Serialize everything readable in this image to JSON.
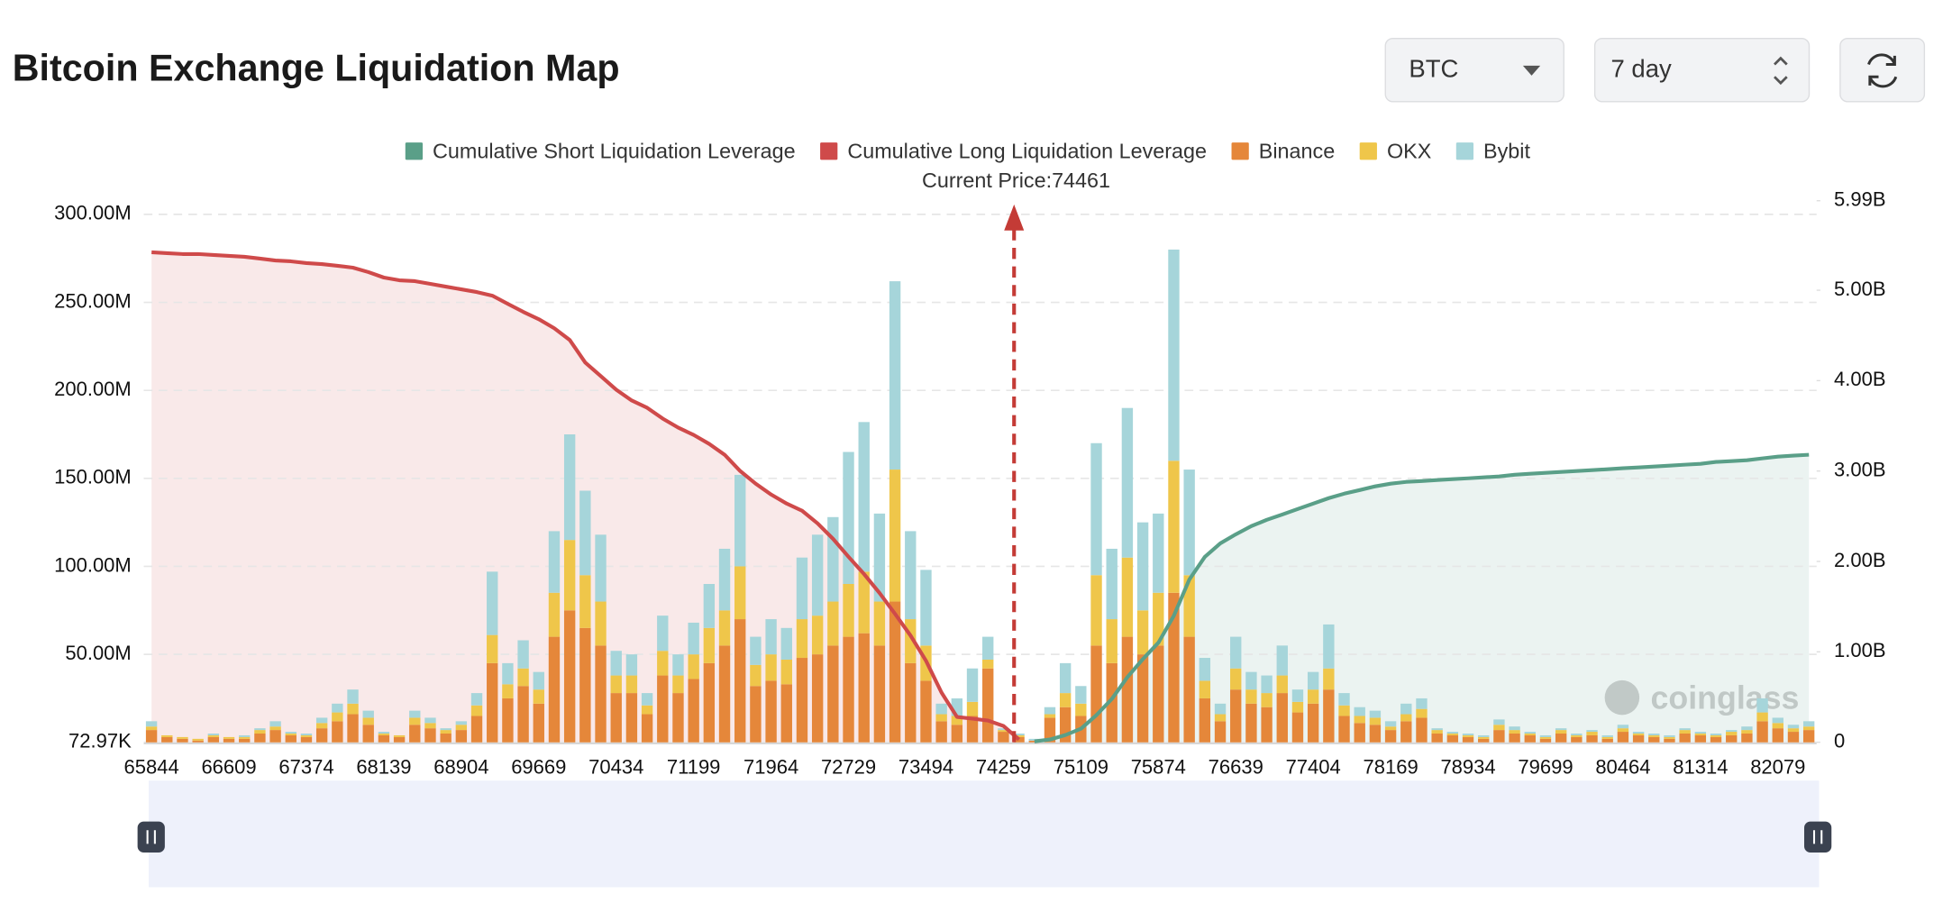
{
  "header": {
    "title": "Bitcoin Exchange Liquidation Map"
  },
  "controls": {
    "symbol": "BTC",
    "period": "7 day"
  },
  "chart_data": {
    "type": "bar",
    "watermark": "coinglass",
    "annotation": {
      "label": "Current Price:",
      "value": 74461
    },
    "categories": [
      65844,
      null,
      null,
      null,
      null,
      66609,
      null,
      null,
      null,
      null,
      67374,
      null,
      null,
      null,
      null,
      68139,
      null,
      null,
      null,
      null,
      68904,
      null,
      null,
      null,
      null,
      69669,
      null,
      null,
      null,
      null,
      70434,
      null,
      null,
      null,
      null,
      71199,
      null,
      null,
      null,
      null,
      71964,
      null,
      null,
      null,
      null,
      72729,
      null,
      null,
      null,
      null,
      73494,
      null,
      null,
      null,
      null,
      74259,
      null,
      null,
      null,
      null,
      75109,
      null,
      null,
      null,
      null,
      75874,
      null,
      null,
      null,
      null,
      76639,
      null,
      null,
      null,
      null,
      77404,
      null,
      null,
      null,
      null,
      78169,
      null,
      null,
      null,
      null,
      78934,
      null,
      null,
      null,
      null,
      79699,
      null,
      null,
      null,
      null,
      80464,
      null,
      null,
      null,
      null,
      81314,
      null,
      null,
      null,
      null,
      82079,
      null,
      null
    ],
    "ylim": [
      0.07297,
      300
    ],
    "yticks": [
      {
        "value": 0.07297,
        "label": "72.97K"
      },
      {
        "value": 50,
        "label": "50.00M"
      },
      {
        "value": 100,
        "label": "100.00M"
      },
      {
        "value": 150,
        "label": "150.00M"
      },
      {
        "value": 200,
        "label": "200.00M"
      },
      {
        "value": 250,
        "label": "250.00M"
      },
      {
        "value": 300,
        "label": "300.00M"
      }
    ],
    "y2lim": [
      0,
      5.99
    ],
    "y2ticks": [
      0,
      {
        "value": 1,
        "label": "1.00B"
      },
      {
        "value": 2,
        "label": "2.00B"
      },
      {
        "value": 3,
        "label": "3.00B"
      },
      {
        "value": 4,
        "label": "4.00B"
      },
      {
        "value": 5,
        "label": "5.00B"
      },
      {
        "value": 5.99,
        "label": "5.99B"
      }
    ],
    "grid": true,
    "series": [
      {
        "name": "Cumulative Short Liquidation Leverage",
        "type": "line",
        "axis": "y2",
        "color": "#5a9f88",
        "values": [
          null,
          null,
          null,
          null,
          null,
          null,
          null,
          null,
          null,
          null,
          null,
          null,
          null,
          null,
          null,
          null,
          null,
          null,
          null,
          null,
          null,
          null,
          null,
          null,
          null,
          null,
          null,
          null,
          null,
          null,
          null,
          null,
          null,
          null,
          null,
          null,
          null,
          null,
          null,
          null,
          null,
          null,
          null,
          null,
          null,
          null,
          null,
          null,
          null,
          null,
          null,
          null,
          null,
          null,
          null,
          null,
          null,
          0.01,
          0.03,
          0.08,
          0.15,
          0.3,
          0.48,
          0.72,
          0.92,
          1.1,
          1.4,
          1.8,
          2.05,
          2.2,
          2.3,
          2.39,
          2.46,
          2.52,
          2.58,
          2.64,
          2.7,
          2.75,
          2.79,
          2.83,
          2.86,
          2.88,
          2.89,
          2.9,
          2.91,
          2.92,
          2.93,
          2.94,
          2.96,
          2.97,
          2.98,
          2.99,
          3.0,
          3.01,
          3.02,
          3.03,
          3.04,
          3.05,
          3.06,
          3.07,
          3.08,
          3.1,
          3.11,
          3.12,
          3.14,
          3.16,
          3.17,
          3.18
        ]
      },
      {
        "name": "Cumulative Long Liquidation Leverage",
        "type": "line",
        "axis": "y2",
        "color": "#cf4a4a",
        "values": [
          5.42,
          5.41,
          5.4,
          5.4,
          5.39,
          5.38,
          5.37,
          5.35,
          5.33,
          5.32,
          5.3,
          5.29,
          5.27,
          5.25,
          5.2,
          5.14,
          5.11,
          5.1,
          5.07,
          5.04,
          5.01,
          4.98,
          4.94,
          4.85,
          4.76,
          4.68,
          4.58,
          4.45,
          4.2,
          4.05,
          3.9,
          3.78,
          3.7,
          3.58,
          3.48,
          3.4,
          3.3,
          3.18,
          3.0,
          2.86,
          2.74,
          2.64,
          2.56,
          2.42,
          2.25,
          2.05,
          1.86,
          1.65,
          1.42,
          1.18,
          0.9,
          0.55,
          0.28,
          0.26,
          0.24,
          0.18,
          0.03,
          null,
          null,
          null,
          null,
          null,
          null,
          null,
          null,
          null,
          null,
          null,
          null,
          null,
          null,
          null,
          null,
          null,
          null,
          null,
          null,
          null,
          null,
          null,
          null,
          null,
          null,
          null,
          null,
          null,
          null,
          null,
          null,
          null,
          null,
          null,
          null,
          null,
          null,
          null,
          null,
          null,
          null,
          null,
          null,
          null,
          null,
          null,
          null,
          null,
          null,
          null
        ]
      },
      {
        "name": "Binance",
        "color": "#e5873a",
        "values": [
          7,
          3,
          2,
          1,
          3,
          2,
          2,
          5,
          7,
          4,
          3,
          8,
          12,
          16,
          10,
          4,
          3,
          10,
          8,
          5,
          7,
          15,
          45,
          25,
          32,
          22,
          60,
          75,
          65,
          55,
          28,
          28,
          16,
          38,
          28,
          36,
          45,
          55,
          70,
          32,
          35,
          33,
          48,
          50,
          55,
          60,
          62,
          55,
          80,
          45,
          35,
          12,
          10,
          15,
          42,
          6,
          3,
          1,
          14,
          20,
          15,
          55,
          45,
          60,
          50,
          55,
          85,
          60,
          25,
          12,
          30,
          22,
          20,
          28,
          17,
          22,
          30,
          15,
          11,
          10,
          7,
          12,
          14,
          5,
          4,
          3,
          2,
          7,
          5,
          4,
          2,
          5,
          3,
          4,
          2,
          6,
          4,
          3,
          2,
          5,
          4,
          3,
          4,
          5,
          12,
          8,
          6,
          7
        ]
      },
      {
        "name": "OKX",
        "color": "#efc64a",
        "values": [
          2,
          1,
          1,
          1,
          1,
          1,
          1,
          2,
          2,
          1,
          1,
          3,
          5,
          6,
          4,
          1,
          1,
          4,
          3,
          2,
          3,
          6,
          16,
          8,
          10,
          8,
          25,
          40,
          30,
          25,
          10,
          10,
          5,
          14,
          10,
          14,
          20,
          20,
          30,
          12,
          15,
          14,
          22,
          22,
          25,
          30,
          35,
          25,
          75,
          25,
          20,
          4,
          5,
          8,
          5,
          1,
          1,
          0,
          2,
          8,
          7,
          40,
          25,
          45,
          25,
          30,
          75,
          35,
          10,
          4,
          12,
          8,
          8,
          10,
          6,
          8,
          12,
          6,
          4,
          4,
          2,
          4,
          5,
          2,
          1,
          1,
          1,
          3,
          2,
          1,
          1,
          2,
          1,
          2,
          1,
          2,
          1,
          1,
          1,
          2,
          1,
          1,
          2,
          2,
          5,
          3,
          2,
          2
        ]
      },
      {
        "name": "Bybit",
        "color": "#a6d5da",
        "values": [
          3,
          0,
          0,
          0,
          1,
          0,
          1,
          1,
          3,
          1,
          1,
          3,
          5,
          8,
          4,
          1,
          0,
          4,
          3,
          1,
          2,
          7,
          36,
          12,
          16,
          10,
          35,
          60,
          48,
          38,
          14,
          12,
          7,
          20,
          12,
          18,
          25,
          35,
          52,
          16,
          20,
          18,
          35,
          46,
          48,
          75,
          85,
          50,
          107,
          50,
          43,
          6,
          10,
          19,
          13,
          1,
          1,
          1,
          4,
          17,
          10,
          75,
          40,
          85,
          50,
          45,
          120,
          60,
          13,
          6,
          18,
          10,
          10,
          17,
          7,
          10,
          25,
          7,
          5,
          4,
          3,
          6,
          6,
          1,
          1,
          1,
          1,
          3,
          2,
          1,
          1,
          1,
          1,
          1,
          1,
          2,
          1,
          1,
          1,
          1,
          1,
          1,
          1,
          2,
          8,
          3,
          2,
          3
        ]
      }
    ]
  }
}
